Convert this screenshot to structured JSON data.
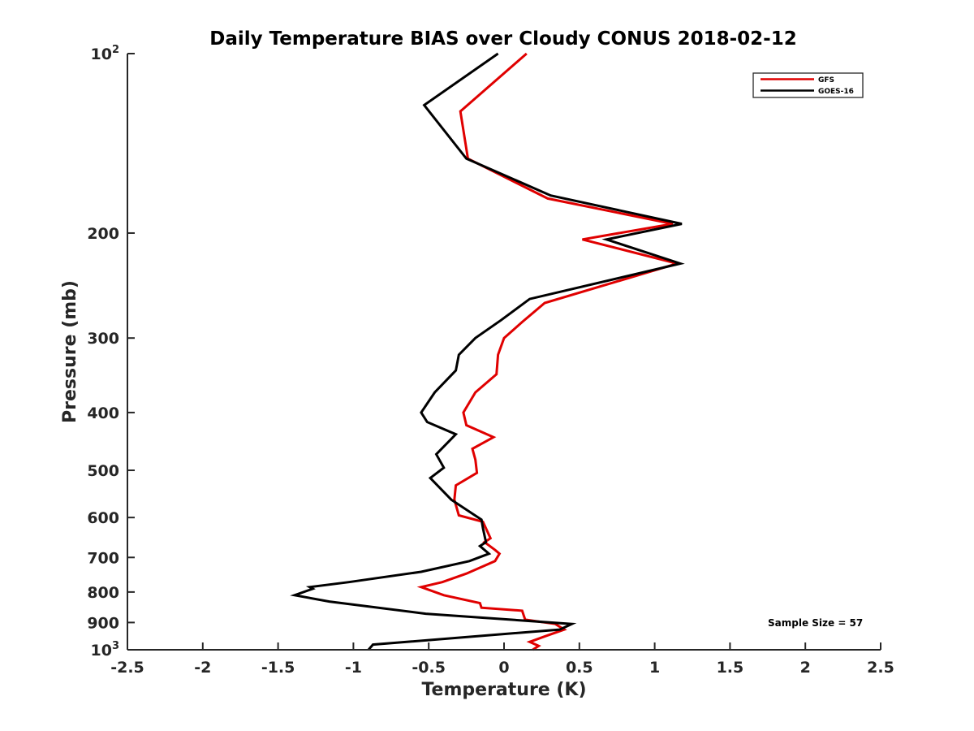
{
  "chart_data": {
    "type": "line",
    "title": "Daily Temperature BIAS over Cloudy CONUS 2018-02-12",
    "xlabel": "Temperature (K)",
    "ylabel": "Pressure (mb)",
    "xlim": [
      -2.5,
      2.5
    ],
    "ylim": [
      100,
      1000
    ],
    "y_scale": "log",
    "y_reversed": true,
    "xticks": [
      "-2.5",
      "-2",
      "-1.5",
      "-1",
      "-0.5",
      "0",
      "0.5",
      "1",
      "1.5",
      "2",
      "2.5"
    ],
    "xtick_values": [
      -2.5,
      -2,
      -1.5,
      -1,
      -0.5,
      0,
      0.5,
      1,
      1.5,
      2,
      2.5
    ],
    "yticks": [
      {
        "value": 100,
        "base": "10",
        "exp": "2"
      },
      {
        "value": 200,
        "label": "200"
      },
      {
        "value": 300,
        "label": "300"
      },
      {
        "value": 400,
        "label": "400"
      },
      {
        "value": 500,
        "label": "500"
      },
      {
        "value": 600,
        "label": "600"
      },
      {
        "value": 700,
        "label": "700"
      },
      {
        "value": 800,
        "label": "800"
      },
      {
        "value": 900,
        "label": "900"
      },
      {
        "value": 1000,
        "base": "10",
        "exp": "3"
      }
    ],
    "legend_position": "top-right",
    "grid": false,
    "annotation": "Sample Size = 57",
    "series": [
      {
        "name": "GFS",
        "color": "#e00000",
        "points": [
          [
            0.15,
            100
          ],
          [
            -0.29,
            125
          ],
          [
            -0.24,
            150
          ],
          [
            0.29,
            175
          ],
          [
            1.12,
            193
          ],
          [
            0.52,
            205
          ],
          [
            1.15,
            225
          ],
          [
            0.27,
            262
          ],
          [
            0.12,
            282
          ],
          [
            0.0,
            300
          ],
          [
            -0.04,
            320
          ],
          [
            -0.05,
            345
          ],
          [
            -0.19,
            370
          ],
          [
            -0.27,
            400
          ],
          [
            -0.25,
            420
          ],
          [
            -0.07,
            440
          ],
          [
            -0.21,
            460
          ],
          [
            -0.19,
            480
          ],
          [
            -0.18,
            505
          ],
          [
            -0.32,
            530
          ],
          [
            -0.33,
            560
          ],
          [
            -0.3,
            595
          ],
          [
            -0.14,
            610
          ],
          [
            -0.09,
            650
          ],
          [
            -0.13,
            660
          ],
          [
            -0.06,
            680
          ],
          [
            -0.03,
            690
          ],
          [
            -0.06,
            710
          ],
          [
            -0.25,
            745
          ],
          [
            -0.41,
            770
          ],
          [
            -0.55,
            785
          ],
          [
            -0.4,
            810
          ],
          [
            -0.16,
            835
          ],
          [
            -0.15,
            850
          ],
          [
            0.12,
            860
          ],
          [
            0.14,
            890
          ],
          [
            0.34,
            905
          ],
          [
            0.4,
            925
          ],
          [
            0.27,
            950
          ],
          [
            0.17,
            970
          ],
          [
            0.23,
            985
          ],
          [
            0.19,
            1000
          ]
        ]
      },
      {
        "name": "GOES-16",
        "color": "#000000",
        "points": [
          [
            -0.04,
            100
          ],
          [
            -0.53,
            122
          ],
          [
            -0.25,
            150
          ],
          [
            0.31,
            173
          ],
          [
            1.18,
            193
          ],
          [
            0.68,
            205
          ],
          [
            1.17,
            225
          ],
          [
            0.17,
            258
          ],
          [
            -0.02,
            280
          ],
          [
            -0.19,
            300
          ],
          [
            -0.3,
            320
          ],
          [
            -0.32,
            340
          ],
          [
            -0.46,
            370
          ],
          [
            -0.55,
            400
          ],
          [
            -0.51,
            415
          ],
          [
            -0.32,
            435
          ],
          [
            -0.45,
            470
          ],
          [
            -0.4,
            495
          ],
          [
            -0.49,
            515
          ],
          [
            -0.35,
            560
          ],
          [
            -0.15,
            605
          ],
          [
            -0.14,
            625
          ],
          [
            -0.12,
            660
          ],
          [
            -0.16,
            670
          ],
          [
            -0.1,
            690
          ],
          [
            -0.23,
            710
          ],
          [
            -0.55,
            740
          ],
          [
            -1.03,
            770
          ],
          [
            -1.29,
            785
          ],
          [
            -1.27,
            790
          ],
          [
            -1.39,
            810
          ],
          [
            -1.16,
            830
          ],
          [
            -0.52,
            870
          ],
          [
            0.45,
            905
          ],
          [
            0.37,
            925
          ],
          [
            -0.87,
            980
          ],
          [
            -0.9,
            1000
          ]
        ]
      }
    ]
  }
}
